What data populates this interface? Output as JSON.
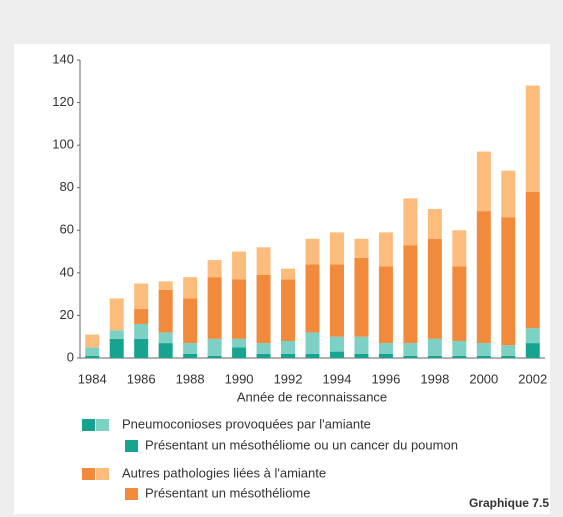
{
  "chart_data": {
    "type": "stacked_bar",
    "categories": [
      "1984",
      null,
      "1986",
      null,
      "1988",
      null,
      "1990",
      null,
      "1992",
      null,
      "1994",
      null,
      "1996",
      null,
      "1998",
      null,
      "2000",
      null,
      "2002"
    ],
    "series": [
      {
        "name": "Présentant un mésothéliome ou un cancer du poumon",
        "color": "#16a390",
        "values": [
          1,
          9,
          9,
          7,
          2,
          1,
          5,
          2,
          2,
          2,
          3,
          2,
          2,
          1,
          1,
          1,
          1,
          1,
          7
        ]
      },
      {
        "name": "Pneumoconioses provoquées par l'amiante",
        "color": "#7dd0c4",
        "values": [
          4,
          4,
          7,
          5,
          5,
          8,
          4,
          5,
          6,
          10,
          7,
          8,
          5,
          6,
          8,
          7,
          6,
          5,
          7
        ]
      },
      {
        "name": "Présentant un mésothéliome",
        "color": "#f28a3c",
        "values": [
          0,
          0,
          7,
          20,
          21,
          29,
          28,
          32,
          29,
          32,
          34,
          37,
          36,
          46,
          47,
          35,
          62,
          60,
          64
        ]
      },
      {
        "name": "Autres pathologies liées à l'amiante",
        "color": "#fcbd7c",
        "values": [
          6,
          15,
          12,
          4,
          10,
          8,
          13,
          13,
          5,
          12,
          15,
          9,
          16,
          22,
          14,
          17,
          28,
          22,
          50
        ]
      }
    ],
    "xlabel": "Année de reconnaissance",
    "ylim": [
      0,
      140
    ],
    "yticks": [
      0,
      20,
      40,
      60,
      80,
      100,
      120,
      140
    ],
    "note": "Graphique 7.5"
  }
}
